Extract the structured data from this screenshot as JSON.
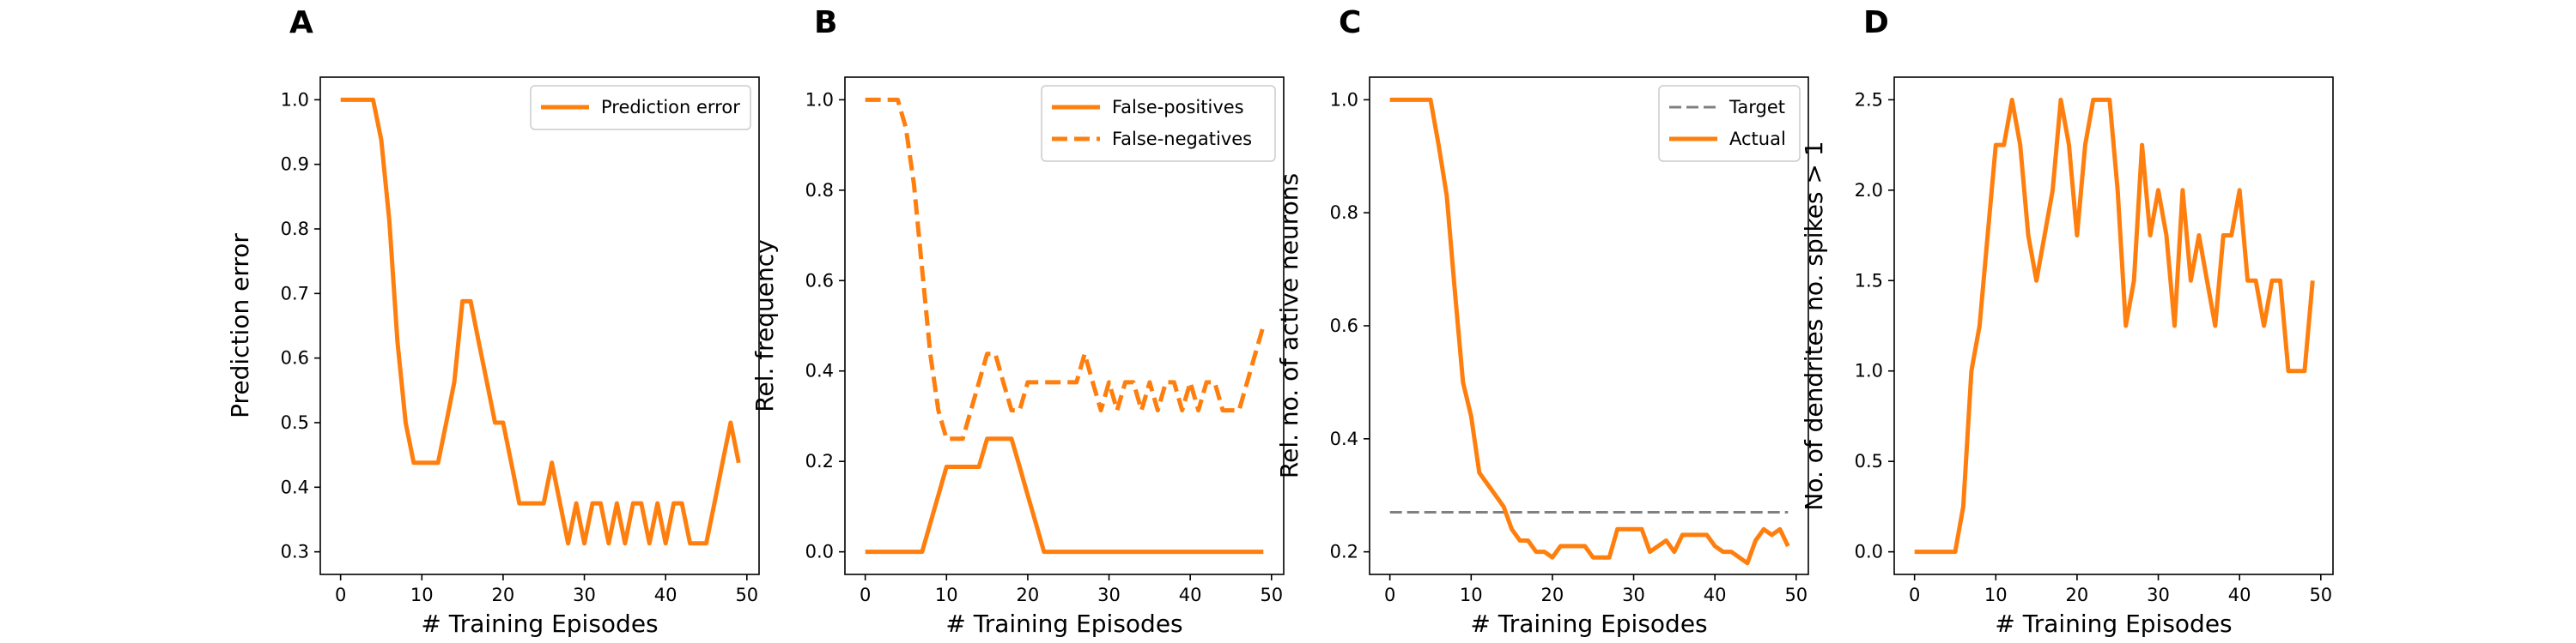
{
  "colors": {
    "series": "#ff7f0e",
    "target": "#808080",
    "axes": "#000000"
  },
  "chart_data": [
    {
      "type": "line",
      "panel": "A",
      "xlabel": "# Training Episodes",
      "ylabel": "Prediction error",
      "xlim": [
        -2.5,
        51.5
      ],
      "ylim": [
        0.265,
        1.035
      ],
      "xticks": [
        0,
        10,
        20,
        30,
        40,
        50
      ],
      "yticks": [
        0.3,
        0.4,
        0.5,
        0.6,
        0.7,
        0.8,
        0.9,
        1.0
      ],
      "ytick_labels": [
        "0.3",
        "0.4",
        "0.5",
        "0.6",
        "0.7",
        "0.8",
        "0.9",
        "1.0"
      ],
      "grid": false,
      "legend": "top-right",
      "x": [
        0,
        1,
        2,
        3,
        4,
        5,
        6,
        7,
        8,
        9,
        10,
        11,
        12,
        13,
        14,
        15,
        16,
        17,
        18,
        19,
        20,
        21,
        22,
        23,
        24,
        25,
        26,
        27,
        28,
        29,
        30,
        31,
        32,
        33,
        34,
        35,
        36,
        37,
        38,
        39,
        40,
        41,
        42,
        43,
        44,
        45,
        46,
        47,
        48,
        49
      ],
      "series": [
        {
          "name": "Prediction error",
          "style": "solid",
          "values": [
            1.0,
            1.0,
            1.0,
            1.0,
            1.0,
            0.938,
            0.813,
            0.625,
            0.5,
            0.438,
            0.438,
            0.438,
            0.438,
            0.5,
            0.563,
            0.688,
            0.688,
            0.625,
            0.563,
            0.5,
            0.5,
            0.438,
            0.375,
            0.375,
            0.375,
            0.375,
            0.438,
            0.375,
            0.313,
            0.375,
            0.313,
            0.375,
            0.375,
            0.313,
            0.375,
            0.313,
            0.375,
            0.375,
            0.313,
            0.375,
            0.313,
            0.375,
            0.375,
            0.313,
            0.313,
            0.313,
            0.375,
            0.438,
            0.5,
            0.438
          ]
        }
      ]
    },
    {
      "type": "line",
      "panel": "B",
      "xlabel": "# Training Episodes",
      "ylabel": "Rel. frequency",
      "xlim": [
        -2.5,
        51.5
      ],
      "ylim": [
        -0.05,
        1.05
      ],
      "xticks": [
        0,
        10,
        20,
        30,
        40,
        50
      ],
      "yticks": [
        0.0,
        0.2,
        0.4,
        0.6,
        0.8,
        1.0
      ],
      "ytick_labels": [
        "0.0",
        "0.2",
        "0.4",
        "0.6",
        "0.8",
        "1.0"
      ],
      "grid": false,
      "legend": "top-right",
      "x": [
        0,
        1,
        2,
        3,
        4,
        5,
        6,
        7,
        8,
        9,
        10,
        11,
        12,
        13,
        14,
        15,
        16,
        17,
        18,
        19,
        20,
        21,
        22,
        23,
        24,
        25,
        26,
        27,
        28,
        29,
        30,
        31,
        32,
        33,
        34,
        35,
        36,
        37,
        38,
        39,
        40,
        41,
        42,
        43,
        44,
        45,
        46,
        47,
        48,
        49
      ],
      "series": [
        {
          "name": "False-positives",
          "style": "solid",
          "values": [
            0,
            0,
            0,
            0,
            0,
            0,
            0,
            0,
            0.063,
            0.125,
            0.188,
            0.188,
            0.188,
            0.188,
            0.188,
            0.25,
            0.25,
            0.25,
            0.25,
            0.188,
            0.125,
            0.063,
            0,
            0,
            0,
            0,
            0,
            0,
            0,
            0,
            0,
            0,
            0,
            0,
            0,
            0,
            0,
            0,
            0,
            0,
            0,
            0,
            0,
            0,
            0,
            0,
            0,
            0,
            0,
            0
          ]
        },
        {
          "name": "False-negatives",
          "style": "dashed",
          "values": [
            1.0,
            1.0,
            1.0,
            1.0,
            1.0,
            0.938,
            0.813,
            0.625,
            0.438,
            0.313,
            0.25,
            0.25,
            0.25,
            0.313,
            0.375,
            0.438,
            0.438,
            0.375,
            0.313,
            0.313,
            0.375,
            0.375,
            0.375,
            0.375,
            0.375,
            0.375,
            0.375,
            0.438,
            0.375,
            0.313,
            0.375,
            0.313,
            0.375,
            0.375,
            0.313,
            0.375,
            0.313,
            0.375,
            0.375,
            0.313,
            0.375,
            0.313,
            0.375,
            0.375,
            0.313,
            0.313,
            0.313,
            0.375,
            0.438,
            0.5
          ]
        }
      ]
    },
    {
      "type": "line",
      "panel": "C",
      "xlabel": "# Training Episodes",
      "ylabel": "Rel. no. of active neurons",
      "xlim": [
        -2.5,
        51.5
      ],
      "ylim": [
        0.16,
        1.04
      ],
      "xticks": [
        0,
        10,
        20,
        30,
        40,
        50
      ],
      "yticks": [
        0.2,
        0.4,
        0.6,
        0.8,
        1.0
      ],
      "ytick_labels": [
        "0.2",
        "0.4",
        "0.6",
        "0.8",
        "1.0"
      ],
      "grid": false,
      "legend": "top-right",
      "x": [
        0,
        1,
        2,
        3,
        4,
        5,
        6,
        7,
        8,
        9,
        10,
        11,
        12,
        13,
        14,
        15,
        16,
        17,
        18,
        19,
        20,
        21,
        22,
        23,
        24,
        25,
        26,
        27,
        28,
        29,
        30,
        31,
        32,
        33,
        34,
        35,
        36,
        37,
        38,
        39,
        40,
        41,
        42,
        43,
        44,
        45,
        46,
        47,
        48,
        49
      ],
      "series": [
        {
          "name": "Target",
          "style": "dashed",
          "color_key": "target",
          "values": [
            0.27,
            0.27,
            0.27,
            0.27,
            0.27,
            0.27,
            0.27,
            0.27,
            0.27,
            0.27,
            0.27,
            0.27,
            0.27,
            0.27,
            0.27,
            0.27,
            0.27,
            0.27,
            0.27,
            0.27,
            0.27,
            0.27,
            0.27,
            0.27,
            0.27,
            0.27,
            0.27,
            0.27,
            0.27,
            0.27,
            0.27,
            0.27,
            0.27,
            0.27,
            0.27,
            0.27,
            0.27,
            0.27,
            0.27,
            0.27,
            0.27,
            0.27,
            0.27,
            0.27,
            0.27,
            0.27,
            0.27,
            0.27,
            0.27,
            0.27
          ]
        },
        {
          "name": "Actual",
          "style": "solid",
          "values": [
            1.0,
            1.0,
            1.0,
            1.0,
            1.0,
            1.0,
            0.92,
            0.83,
            0.66,
            0.5,
            0.44,
            0.34,
            0.32,
            0.3,
            0.28,
            0.24,
            0.22,
            0.22,
            0.2,
            0.2,
            0.19,
            0.21,
            0.21,
            0.21,
            0.21,
            0.19,
            0.19,
            0.19,
            0.24,
            0.24,
            0.24,
            0.24,
            0.2,
            0.21,
            0.22,
            0.2,
            0.23,
            0.23,
            0.23,
            0.23,
            0.21,
            0.2,
            0.2,
            0.19,
            0.18,
            0.22,
            0.24,
            0.23,
            0.24,
            0.21
          ]
        }
      ]
    },
    {
      "type": "line",
      "panel": "D",
      "xlabel": "# Training Episodes",
      "ylabel": "No. of dendrites no. spikes > 1",
      "xlim": [
        -2.5,
        51.5
      ],
      "ylim": [
        -0.125,
        2.625
      ],
      "xticks": [
        0,
        10,
        20,
        30,
        40,
        50
      ],
      "yticks": [
        0.0,
        0.5,
        1.0,
        1.5,
        2.0,
        2.5
      ],
      "ytick_labels": [
        "0.0",
        "0.5",
        "1.0",
        "1.5",
        "2.0",
        "2.5"
      ],
      "grid": false,
      "legend": "none",
      "x": [
        0,
        1,
        2,
        3,
        4,
        5,
        6,
        7,
        8,
        9,
        10,
        11,
        12,
        13,
        14,
        15,
        16,
        17,
        18,
        19,
        20,
        21,
        22,
        23,
        24,
        25,
        26,
        27,
        28,
        29,
        30,
        31,
        32,
        33,
        34,
        35,
        36,
        37,
        38,
        39,
        40,
        41,
        42,
        43,
        44,
        45,
        46,
        47,
        48,
        49
      ],
      "series": [
        {
          "style": "solid",
          "values": [
            0,
            0,
            0,
            0,
            0,
            0,
            0.25,
            1.0,
            1.25,
            1.75,
            2.25,
            2.25,
            2.5,
            2.25,
            1.75,
            1.5,
            1.75,
            2.0,
            2.5,
            2.25,
            1.75,
            2.25,
            2.5,
            2.5,
            2.5,
            2.0,
            1.25,
            1.5,
            2.25,
            1.75,
            2.0,
            1.75,
            1.25,
            2.0,
            1.5,
            1.75,
            1.5,
            1.25,
            1.75,
            1.75,
            2.0,
            1.5,
            1.5,
            1.25,
            1.5,
            1.5,
            1.0,
            1.0,
            1.0,
            1.5
          ]
        }
      ]
    }
  ]
}
